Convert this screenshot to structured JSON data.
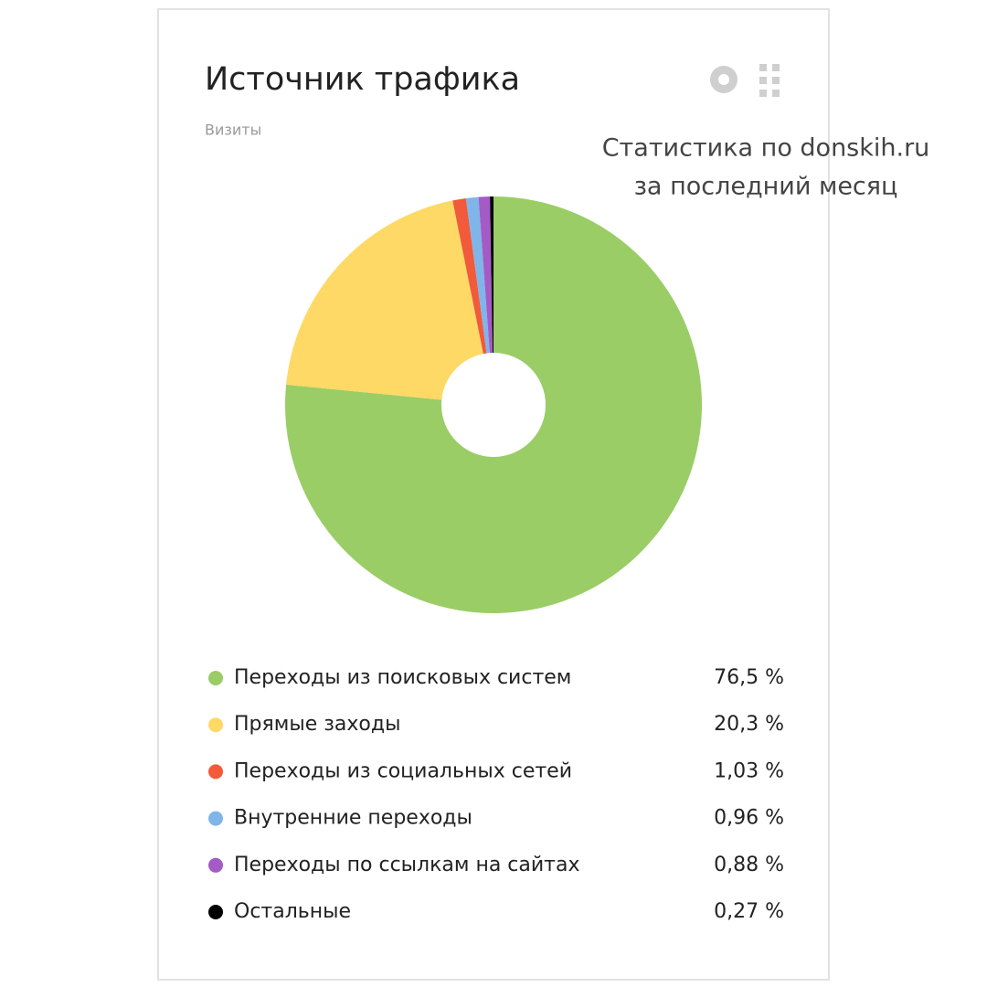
{
  "chart_data": {
    "type": "pie",
    "title": "Источник трафика",
    "subtitle": "Визиты",
    "annotation": [
      "Статистика по donskih.ru",
      "за последний месяц"
    ],
    "categories": [
      "Переходы из поисковых систем",
      "Прямые заходы",
      "Переходы из социальных сетей",
      "Внутренние переходы",
      "Переходы по ссылкам на сайтах",
      "Остальные"
    ],
    "values": [
      76.5,
      20.3,
      1.03,
      0.96,
      0.88,
      0.27
    ],
    "value_labels": [
      "76,5 %",
      "20,3 %",
      "1,03 %",
      "0,96 %",
      "0,88 %",
      "0,27 %"
    ],
    "colors": [
      "#9acd66",
      "#ffd966",
      "#f15a3a",
      "#80b5ea",
      "#a45bc6",
      "#ededе6"
    ]
  }
}
